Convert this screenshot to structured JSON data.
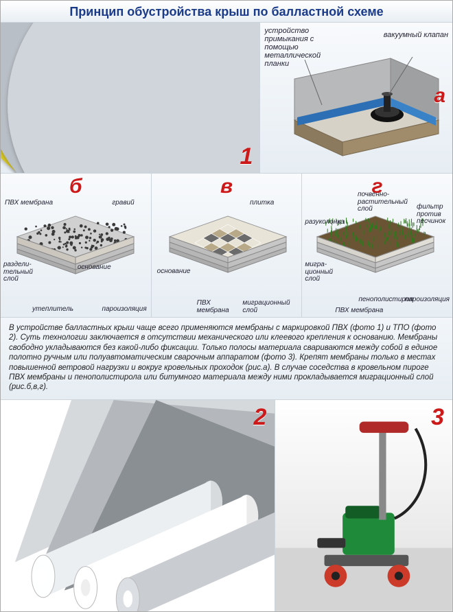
{
  "title": "Принцип обустройства крыш по балластной схеме",
  "panel1": {
    "badge": "1",
    "fan_colors": [
      "#8a1f2a",
      "#1d4fa0",
      "#2f8f3c",
      "#d9c82a",
      "#b9bfc6",
      "#cfd5db"
    ],
    "background": "#f0f4f8"
  },
  "panelA": {
    "badge": "а",
    "callouts": {
      "left": "устройство\nпримыкания с\nпомощью\nметаллической\nпланки",
      "right": "вакуумный клапан"
    },
    "colors": {
      "slab_top": "#d7d2c8",
      "slab_side": "#8c7a5e",
      "wall": "#b8b9bb",
      "membrane": "#2c6fb5",
      "drain": "#222"
    }
  },
  "panelB": {
    "badge": "б",
    "labels": {
      "pvh": "ПВХ мембрана",
      "gravel": "гравий",
      "razdel": "раздели-\nтельный\nслой",
      "utepl": "утеплитель",
      "osn": "основание",
      "paro": "пароизоляция"
    },
    "colors": {
      "gravel": "#3a3a3a",
      "membrane": "#d0d0d0",
      "base": "#c8c8c8",
      "insulation": "#ddd9d0"
    }
  },
  "panelC": {
    "badge": "в",
    "labels": {
      "tile": "плитка",
      "osn": "основание",
      "pvh": "ПВХ\nмембрана",
      "migr": "миграционный\nслой"
    },
    "colors": {
      "tile1": "#e8e4d8",
      "tile2": "#b8a988",
      "tile3": "#6b6b6b",
      "membrane": "#cfcfcf",
      "base": "#c8c8c8"
    }
  },
  "panelD": {
    "badge": "г",
    "labels": {
      "soil": "почвенно-\nрастительный\nслой",
      "razuk": "разуколонка",
      "filter": "фильтр\nпротив\nпесчинок",
      "migr": "мигра-\nционный\nслой",
      "peno": "пенополистирол",
      "pvh": "ПВХ мембрана",
      "paro": "пароизоляция"
    },
    "colors": {
      "grass": "#2d7a1e",
      "soil": "#6b5434",
      "membrane": "#cfcfcf",
      "foam": "#e8e6df",
      "base": "#c8c8c8"
    }
  },
  "description": "В устройстве балластных крыш чаще всего применяются мембраны с маркировкой ПВХ (фото 1) и ТПО (фото 2). Суть технологии заключается в отсутствии механического или клеевого крепления к основанию. Мембраны свободно укладываются без какой-либо фиксации. Только полосы материала свариваются между собой в единое полотно ручным или полуавтоматическим сварочным аппаратом (фото 3). Крепят мембраны только в местах повышенной ветровой нагрузки и вокруг кровельных проходок (рис.а). В случае соседства в кровельном пироге ПВХ мембраны и пенополистирола или битумного материала между ними прокладывается миграционный слой (рис.б,в,г).",
  "panel2": {
    "badge": "2",
    "roll_shades": [
      "#8a8f94",
      "#b4b8bc",
      "#d6d9dc",
      "#eceff1",
      "#ffffff",
      "#c9ccd0"
    ]
  },
  "panel3": {
    "badge": "3",
    "colors": {
      "body": "#1e8a3a",
      "handle": "#b02a2a",
      "base": "#555",
      "wheel": "#cc3a2a",
      "floor": "#d4d4d4"
    }
  }
}
